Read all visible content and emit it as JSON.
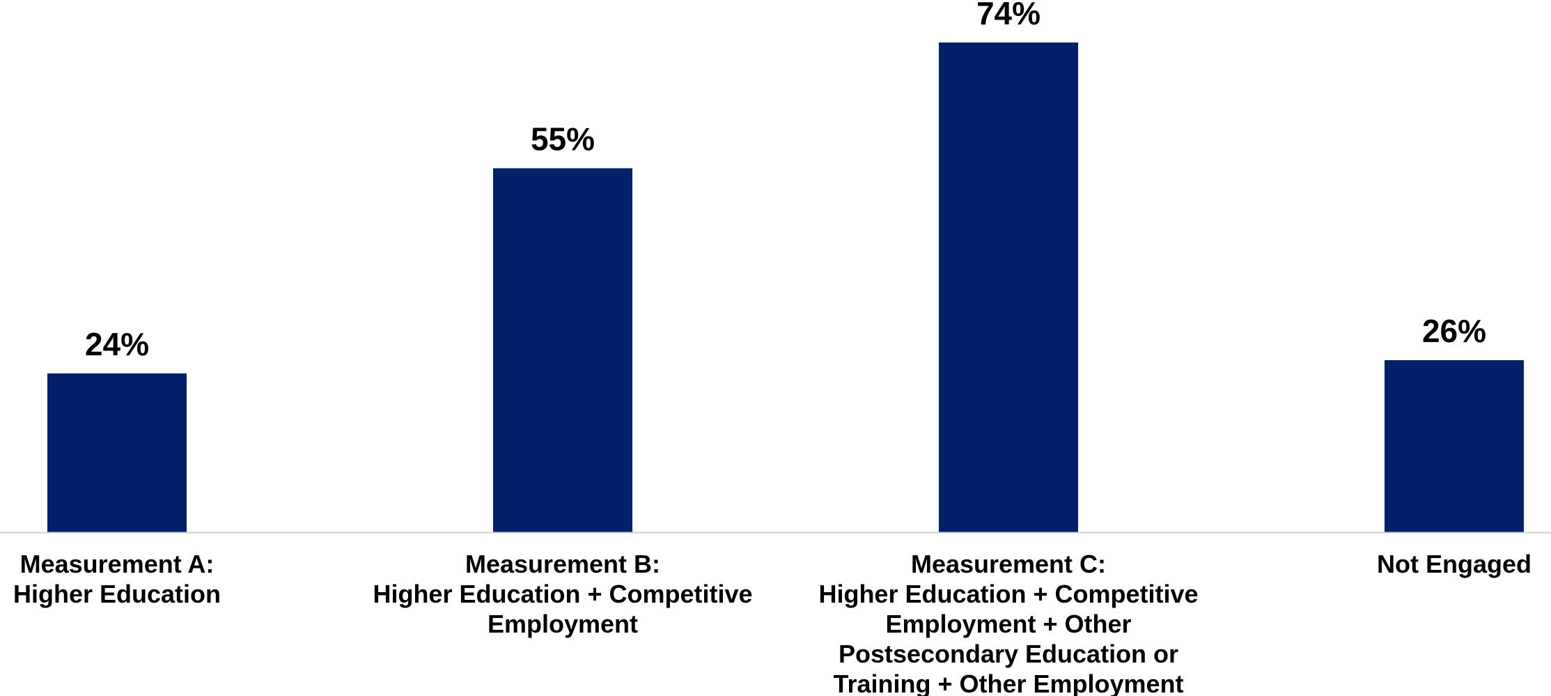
{
  "chart_data": {
    "type": "bar",
    "title": "",
    "xlabel": "",
    "ylabel": "",
    "ylim": [
      0,
      80
    ],
    "grid": false,
    "legend": "none",
    "bar_color": "#03216A",
    "axis_color": "#D0D0D0",
    "categories": [
      [
        "Measurement A:",
        "Higher Education"
      ],
      [
        "Measurement B:",
        "Higher Education + Competitive",
        "Employment"
      ],
      [
        "Measurement C:",
        "Higher Education + Competitive",
        "Employment + Other",
        "Postsecondary Education or",
        "Training + Other Employment"
      ],
      [
        "Not Engaged"
      ]
    ],
    "values": [
      24,
      55,
      74,
      26
    ],
    "data_labels": [
      "24%",
      "55%",
      "74%",
      "26%"
    ]
  }
}
